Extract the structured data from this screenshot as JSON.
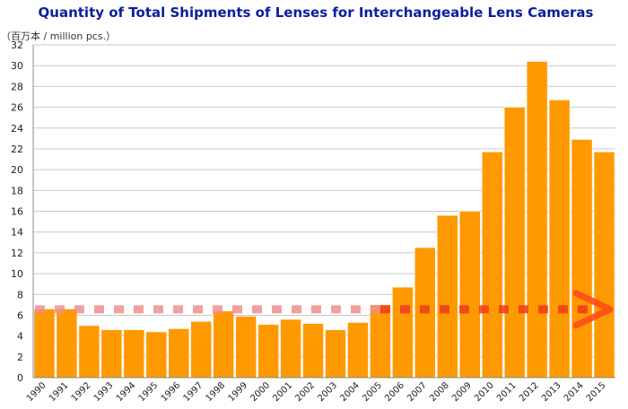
{
  "chart_data": {
    "type": "bar",
    "title": "Quantity of Total Shipments of Lenses for Interchangeable Lens Cameras",
    "unit_label": "（百万本 / million pcs.）",
    "xlabel": "",
    "ylabel": "（百万本 / million pcs.）",
    "ylim": [
      0,
      32
    ],
    "y_ticks": [
      0,
      2,
      4,
      6,
      8,
      10,
      12,
      14,
      16,
      18,
      20,
      22,
      24,
      26,
      28,
      30,
      32
    ],
    "grid": true,
    "categories": [
      "1990",
      "1991",
      "1992",
      "1993",
      "1994",
      "1995",
      "1996",
      "1997",
      "1998",
      "1999",
      "2000",
      "2001",
      "2002",
      "2003",
      "2004",
      "2005",
      "2006",
      "2007",
      "2008",
      "2009",
      "2010",
      "2011",
      "2012",
      "2013",
      "2014",
      "2015"
    ],
    "values": [
      6.6,
      6.6,
      5.0,
      4.6,
      4.6,
      4.4,
      4.7,
      5.4,
      6.4,
      5.9,
      5.1,
      5.6,
      5.2,
      4.6,
      5.3,
      7.0,
      8.7,
      12.5,
      15.6,
      16.0,
      21.7,
      26.0,
      30.4,
      26.7,
      22.9,
      21.7
    ],
    "reference_line": {
      "value": 6.7,
      "style": "dashed",
      "arrow": "right"
    },
    "colors": {
      "bar": "#ff9900",
      "bar_edge": "#ffffff",
      "title": "#0a1f9e",
      "grid": "#c8c8c8",
      "axis": "#888888",
      "reference_pale": "#f08f8f",
      "reference_strong": "#ee3a1a",
      "arrow": "#ff4a1a"
    }
  }
}
